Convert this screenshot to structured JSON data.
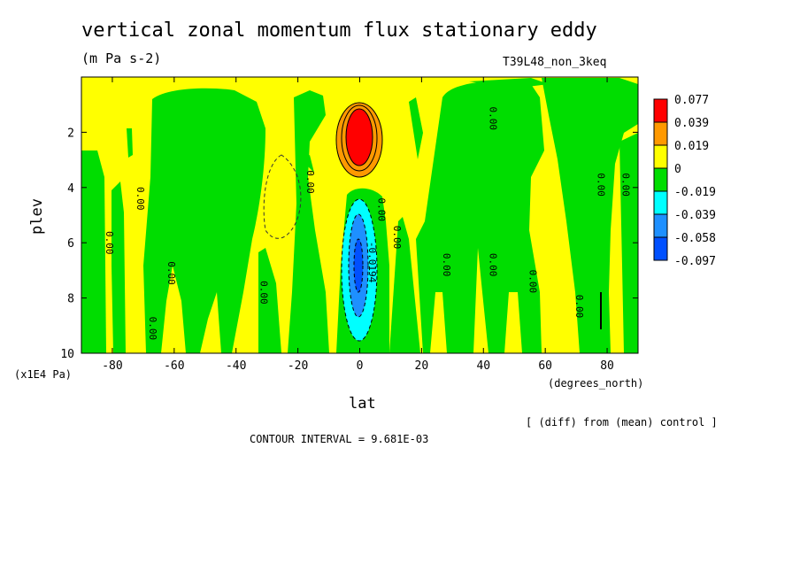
{
  "chart_data": {
    "type": "heatmap",
    "title": "vertical zonal momentum flux stationary eddy",
    "subtitle": "(m Pa s-2)",
    "run_label": "T39L48_non_3keq",
    "xlabel": "lat",
    "x_unit": "(degrees_north)",
    "ylabel": "plev",
    "y_unit": "(x1E4 Pa)",
    "note": "[ (diff) from (mean) control ]",
    "contour_interval": "CONTOUR INTERVAL = 9.681E-03",
    "xlim": [
      -90,
      90
    ],
    "ylim": [
      10,
      0
    ],
    "x_ticks": [
      -80,
      -60,
      -40,
      -20,
      0,
      20,
      40,
      60,
      80
    ],
    "x_tick_labels": [
      "-80",
      "-60",
      "-40",
      "-20",
      "0",
      "20",
      "40",
      "60",
      "80"
    ],
    "y_ticks": [
      2,
      4,
      6,
      8,
      10
    ],
    "y_tick_labels": [
      "2",
      "4",
      "6",
      "8",
      "10"
    ],
    "grid": false,
    "legend": "right",
    "colorbar": {
      "labels": [
        "0.077",
        "0.039",
        "0.019",
        "0",
        "-0.019",
        "-0.039",
        "-0.058",
        "-0.097"
      ],
      "colors": [
        "#ff0000",
        "#ff9900",
        "#ffff00",
        "#00dd00",
        "#00ffff",
        "#1e90ff",
        "#0050ff"
      ]
    },
    "contour_labels": [
      {
        "text": "0.00",
        "x": -82,
        "y": 6.0
      },
      {
        "text": "0.00",
        "x": -72,
        "y": 4.4
      },
      {
        "text": "0.00",
        "x": -62,
        "y": 7.1
      },
      {
        "text": "0.00",
        "x": -68,
        "y": 9.1
      },
      {
        "text": "0.00",
        "x": -32,
        "y": 7.8
      },
      {
        "text": "0.00",
        "x": -17,
        "y": 3.8
      },
      {
        "text": "0.00",
        "x": 6,
        "y": 4.8
      },
      {
        "text": "0.00",
        "x": 11,
        "y": 5.8
      },
      {
        "text": "0.00",
        "x": 27,
        "y": 6.8
      },
      {
        "text": "0.00",
        "x": 42,
        "y": 6.8
      },
      {
        "text": "0.00",
        "x": 42,
        "y": 1.5
      },
      {
        "text": "0.00",
        "x": 55,
        "y": 7.4
      },
      {
        "text": "0.00",
        "x": 70,
        "y": 8.3
      },
      {
        "text": "0.00",
        "x": 77,
        "y": 3.9
      },
      {
        "text": "0.00",
        "x": 85,
        "y": 3.9
      },
      {
        "text": "-0.0194",
        "x": 3,
        "y": 6.7
      }
    ]
  }
}
